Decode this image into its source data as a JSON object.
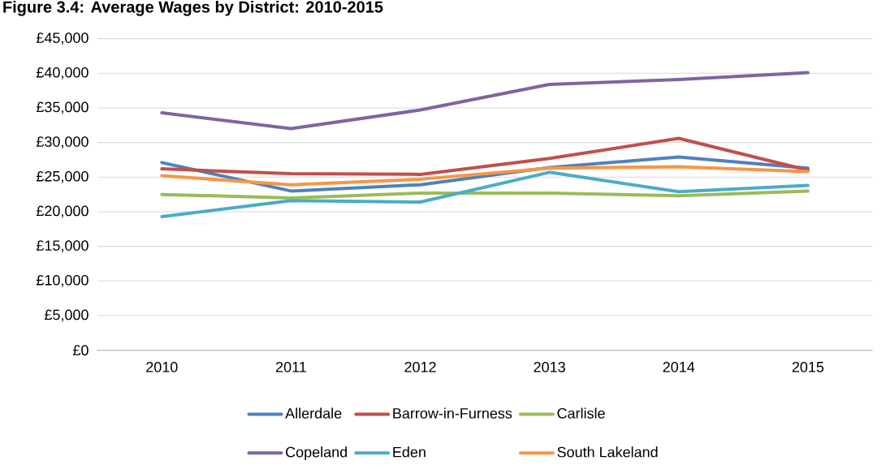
{
  "chart_data": {
    "type": "line",
    "title": "Figure 3.4: Average Wages by District: 2010-2015",
    "categories": [
      "2010",
      "2011",
      "2012",
      "2013",
      "2014",
      "2015"
    ],
    "series": [
      {
        "name": "Allerdale",
        "color": "#4f81bd",
        "values": [
          27100,
          23000,
          23900,
          26400,
          27900,
          26300
        ]
      },
      {
        "name": "Barrow-in-Furness",
        "color": "#c0504d",
        "values": [
          26200,
          25500,
          25400,
          27700,
          30600,
          26000
        ]
      },
      {
        "name": "Carlisle",
        "color": "#9bbb59",
        "values": [
          22500,
          22000,
          22700,
          22700,
          22300,
          23000
        ]
      },
      {
        "name": "Copeland",
        "color": "#8064a2",
        "values": [
          34300,
          32000,
          34700,
          38400,
          39100,
          40100
        ]
      },
      {
        "name": "Eden",
        "color": "#4bacc6",
        "values": [
          19300,
          21600,
          21400,
          25700,
          22900,
          23800
        ]
      },
      {
        "name": "South Lakeland",
        "color": "#f79646",
        "values": [
          25200,
          23900,
          24700,
          26300,
          26500,
          25800
        ]
      }
    ],
    "ylim": [
      0,
      45000
    ],
    "yticks": [
      {
        "value": 0,
        "label": "£0"
      },
      {
        "value": 5000,
        "label": "£5,000"
      },
      {
        "value": 10000,
        "label": "£10,000"
      },
      {
        "value": 15000,
        "label": "£15,000"
      },
      {
        "value": 20000,
        "label": "£20,000"
      },
      {
        "value": 25000,
        "label": "£25,000"
      },
      {
        "value": 30000,
        "label": "£30,000"
      },
      {
        "value": 35000,
        "label": "£35,000"
      },
      {
        "value": 40000,
        "label": "£40,000"
      },
      {
        "value": 45000,
        "label": "£45,000"
      }
    ],
    "grid": "y",
    "legend": "bottom",
    "marker": "none",
    "line_style": "solid"
  }
}
